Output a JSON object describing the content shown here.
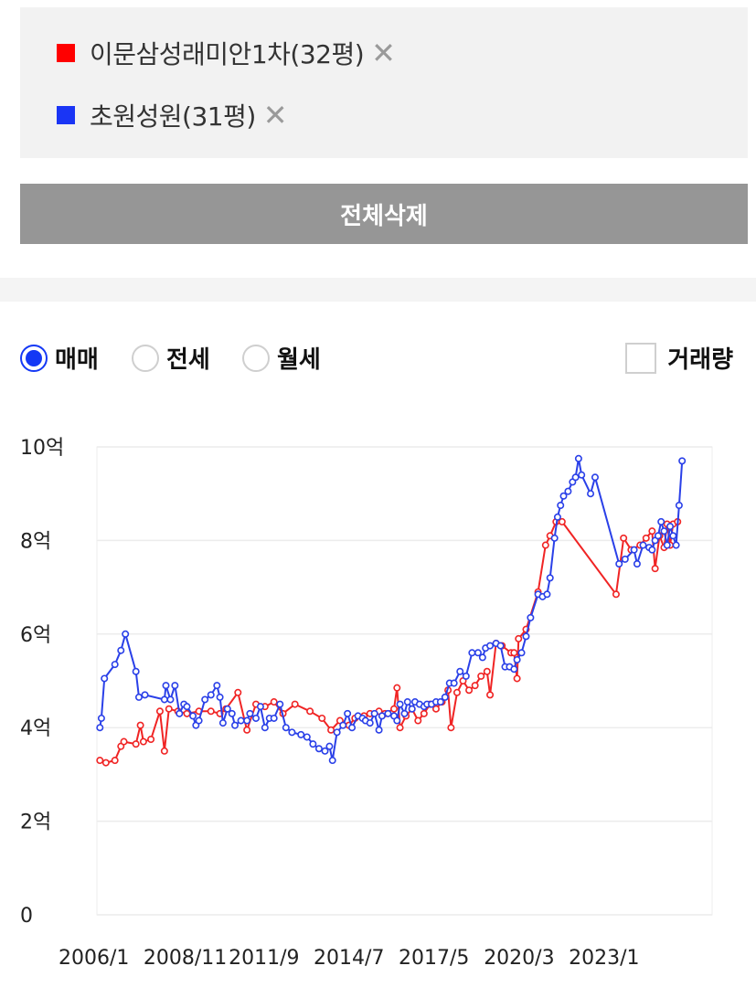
{
  "compare": {
    "items": [
      {
        "name": "이문삼성래미안1차(32평)",
        "color": "#ff0000",
        "remove_icon": "close-icon"
      },
      {
        "name": "초원성원(31평)",
        "color": "#1a35f5",
        "remove_icon": "close-icon"
      }
    ],
    "remove_glyph": "✕"
  },
  "delete_all_label": "전체삭제",
  "options": {
    "radios": [
      {
        "label": "매매",
        "selected": true
      },
      {
        "label": "전세",
        "selected": false
      },
      {
        "label": "월세",
        "selected": false
      }
    ],
    "volume_label": "거래량",
    "volume_checked": false
  },
  "chart_data": {
    "type": "line",
    "title": "",
    "xlabel": "",
    "ylabel": "",
    "x_unit": "year",
    "xlim": [
      2006.0,
      2026.5
    ],
    "ylim": [
      0,
      10
    ],
    "y_ticks": [
      {
        "value": 0,
        "label": "0"
      },
      {
        "value": 2,
        "label": "2억"
      },
      {
        "value": 4,
        "label": "4억"
      },
      {
        "value": 6,
        "label": "6억"
      },
      {
        "value": 8,
        "label": "8억"
      },
      {
        "value": 10,
        "label": "10억"
      }
    ],
    "x_ticks": [
      {
        "value": 2006.0,
        "label": "2006/1"
      },
      {
        "value": 2008.83,
        "label": "2008/11"
      },
      {
        "value": 2011.67,
        "label": "2011/9"
      },
      {
        "value": 2014.5,
        "label": "2014/7"
      },
      {
        "value": 2017.33,
        "label": "2017/5"
      },
      {
        "value": 2020.17,
        "label": "2020/3"
      },
      {
        "value": 2023.0,
        "label": "2023/1"
      }
    ],
    "grid": true,
    "series": [
      {
        "name": "이문삼성래미안1차(32평)",
        "color": "#f02424",
        "points": [
          [
            2006.1,
            3.3
          ],
          [
            2006.3,
            3.25
          ],
          [
            2006.6,
            3.3
          ],
          [
            2006.8,
            3.6
          ],
          [
            2006.9,
            3.7
          ],
          [
            2007.3,
            3.65
          ],
          [
            2007.45,
            4.05
          ],
          [
            2007.55,
            3.7
          ],
          [
            2007.8,
            3.75
          ],
          [
            2008.1,
            4.35
          ],
          [
            2008.25,
            3.5
          ],
          [
            2008.4,
            4.4
          ],
          [
            2008.7,
            4.35
          ],
          [
            2009.0,
            4.3
          ],
          [
            2009.4,
            4.35
          ],
          [
            2009.8,
            4.35
          ],
          [
            2010.1,
            4.3
          ],
          [
            2010.3,
            4.4
          ],
          [
            2010.7,
            4.75
          ],
          [
            2011.0,
            3.95
          ],
          [
            2011.3,
            4.5
          ],
          [
            2011.6,
            4.45
          ],
          [
            2011.9,
            4.55
          ],
          [
            2012.2,
            4.3
          ],
          [
            2012.6,
            4.5
          ],
          [
            2013.1,
            4.35
          ],
          [
            2013.5,
            4.2
          ],
          [
            2013.8,
            3.95
          ],
          [
            2014.1,
            4.15
          ],
          [
            2014.4,
            4.05
          ],
          [
            2014.6,
            4.2
          ],
          [
            2014.9,
            4.25
          ],
          [
            2015.1,
            4.3
          ],
          [
            2015.4,
            4.35
          ],
          [
            2015.6,
            4.3
          ],
          [
            2015.9,
            4.4
          ],
          [
            2016.0,
            4.85
          ],
          [
            2016.1,
            4.0
          ],
          [
            2016.3,
            4.25
          ],
          [
            2016.5,
            4.4
          ],
          [
            2016.7,
            4.15
          ],
          [
            2016.9,
            4.3
          ],
          [
            2017.1,
            4.5
          ],
          [
            2017.3,
            4.4
          ],
          [
            2017.5,
            4.55
          ],
          [
            2017.7,
            4.8
          ],
          [
            2017.8,
            4.0
          ],
          [
            2018.0,
            4.75
          ],
          [
            2018.2,
            5.0
          ],
          [
            2018.4,
            4.8
          ],
          [
            2018.6,
            4.9
          ],
          [
            2018.8,
            5.1
          ],
          [
            2019.0,
            5.2
          ],
          [
            2019.1,
            4.7
          ],
          [
            2019.3,
            5.8
          ],
          [
            2019.5,
            5.75
          ],
          [
            2019.8,
            5.6
          ],
          [
            2019.9,
            5.6
          ],
          [
            2020.0,
            5.05
          ],
          [
            2020.05,
            5.9
          ],
          [
            2020.3,
            6.1
          ],
          [
            2020.7,
            6.9
          ],
          [
            2020.95,
            7.9
          ],
          [
            2021.1,
            8.1
          ],
          [
            2021.3,
            8.4
          ],
          [
            2021.5,
            8.4
          ],
          [
            2023.3,
            6.85
          ],
          [
            2023.55,
            8.05
          ],
          [
            2023.8,
            7.8
          ],
          [
            2024.1,
            7.9
          ],
          [
            2024.3,
            8.05
          ],
          [
            2024.5,
            8.2
          ],
          [
            2024.6,
            7.4
          ],
          [
            2024.75,
            8.1
          ],
          [
            2024.9,
            7.85
          ],
          [
            2025.0,
            8.35
          ],
          [
            2025.1,
            7.9
          ],
          [
            2025.2,
            8.35
          ],
          [
            2025.35,
            8.4
          ]
        ]
      },
      {
        "name": "초원성원(31평)",
        "color": "#2a40e8",
        "points": [
          [
            2006.1,
            4.0
          ],
          [
            2006.15,
            4.2
          ],
          [
            2006.25,
            5.05
          ],
          [
            2006.6,
            5.35
          ],
          [
            2006.8,
            5.65
          ],
          [
            2006.95,
            6.0
          ],
          [
            2007.3,
            5.2
          ],
          [
            2007.4,
            4.65
          ],
          [
            2007.6,
            4.7
          ],
          [
            2008.25,
            4.6
          ],
          [
            2008.3,
            4.9
          ],
          [
            2008.45,
            4.6
          ],
          [
            2008.6,
            4.9
          ],
          [
            2008.75,
            4.3
          ],
          [
            2008.9,
            4.5
          ],
          [
            2009.0,
            4.45
          ],
          [
            2009.2,
            4.25
          ],
          [
            2009.3,
            4.05
          ],
          [
            2009.4,
            4.15
          ],
          [
            2009.6,
            4.6
          ],
          [
            2009.8,
            4.7
          ],
          [
            2010.0,
            4.9
          ],
          [
            2010.1,
            4.65
          ],
          [
            2010.2,
            4.1
          ],
          [
            2010.35,
            4.4
          ],
          [
            2010.5,
            4.3
          ],
          [
            2010.6,
            4.05
          ],
          [
            2010.8,
            4.15
          ],
          [
            2011.0,
            4.15
          ],
          [
            2011.1,
            4.3
          ],
          [
            2011.3,
            4.2
          ],
          [
            2011.45,
            4.45
          ],
          [
            2011.6,
            4.0
          ],
          [
            2011.75,
            4.2
          ],
          [
            2011.9,
            4.2
          ],
          [
            2012.1,
            4.5
          ],
          [
            2012.3,
            4.0
          ],
          [
            2012.5,
            3.9
          ],
          [
            2012.8,
            3.85
          ],
          [
            2013.0,
            3.8
          ],
          [
            2013.2,
            3.65
          ],
          [
            2013.4,
            3.55
          ],
          [
            2013.6,
            3.5
          ],
          [
            2013.75,
            3.6
          ],
          [
            2013.85,
            3.3
          ],
          [
            2014.0,
            3.9
          ],
          [
            2014.2,
            4.05
          ],
          [
            2014.35,
            4.3
          ],
          [
            2014.5,
            4.0
          ],
          [
            2014.7,
            4.25
          ],
          [
            2014.85,
            4.2
          ],
          [
            2014.95,
            4.15
          ],
          [
            2015.1,
            4.1
          ],
          [
            2015.25,
            4.3
          ],
          [
            2015.4,
            3.95
          ],
          [
            2015.5,
            4.25
          ],
          [
            2015.7,
            4.3
          ],
          [
            2015.9,
            4.25
          ],
          [
            2016.0,
            4.15
          ],
          [
            2016.1,
            4.5
          ],
          [
            2016.25,
            4.3
          ],
          [
            2016.35,
            4.55
          ],
          [
            2016.5,
            4.4
          ],
          [
            2016.6,
            4.55
          ],
          [
            2016.75,
            4.5
          ],
          [
            2016.9,
            4.45
          ],
          [
            2017.0,
            4.5
          ],
          [
            2017.15,
            4.5
          ],
          [
            2017.3,
            4.55
          ],
          [
            2017.45,
            4.55
          ],
          [
            2017.6,
            4.65
          ],
          [
            2017.75,
            4.95
          ],
          [
            2017.9,
            4.95
          ],
          [
            2018.1,
            5.2
          ],
          [
            2018.3,
            5.1
          ],
          [
            2018.5,
            5.6
          ],
          [
            2018.7,
            5.6
          ],
          [
            2018.85,
            5.5
          ],
          [
            2018.95,
            5.7
          ],
          [
            2019.1,
            5.75
          ],
          [
            2019.3,
            5.8
          ],
          [
            2019.45,
            5.75
          ],
          [
            2019.6,
            5.3
          ],
          [
            2019.75,
            5.3
          ],
          [
            2019.9,
            5.25
          ],
          [
            2020.0,
            5.45
          ],
          [
            2020.15,
            5.6
          ],
          [
            2020.3,
            5.95
          ],
          [
            2020.45,
            6.35
          ],
          [
            2020.7,
            6.85
          ],
          [
            2020.85,
            6.8
          ],
          [
            2021.0,
            6.85
          ],
          [
            2021.1,
            7.2
          ],
          [
            2021.25,
            8.05
          ],
          [
            2021.35,
            8.5
          ],
          [
            2021.45,
            8.75
          ],
          [
            2021.55,
            8.95
          ],
          [
            2021.7,
            9.05
          ],
          [
            2021.85,
            9.25
          ],
          [
            2021.95,
            9.35
          ],
          [
            2022.05,
            9.75
          ],
          [
            2022.15,
            9.4
          ],
          [
            2022.45,
            9.0
          ],
          [
            2022.6,
            9.35
          ],
          [
            2023.4,
            7.5
          ],
          [
            2023.6,
            7.6
          ],
          [
            2023.9,
            7.8
          ],
          [
            2024.0,
            7.5
          ],
          [
            2024.2,
            7.9
          ],
          [
            2024.4,
            7.85
          ],
          [
            2024.5,
            7.8
          ],
          [
            2024.6,
            8.0
          ],
          [
            2024.7,
            8.1
          ],
          [
            2024.8,
            8.4
          ],
          [
            2024.9,
            8.2
          ],
          [
            2025.0,
            7.9
          ],
          [
            2025.1,
            8.3
          ],
          [
            2025.2,
            8.1
          ],
          [
            2025.3,
            7.9
          ],
          [
            2025.4,
            8.75
          ],
          [
            2025.5,
            9.7
          ]
        ]
      }
    ]
  }
}
